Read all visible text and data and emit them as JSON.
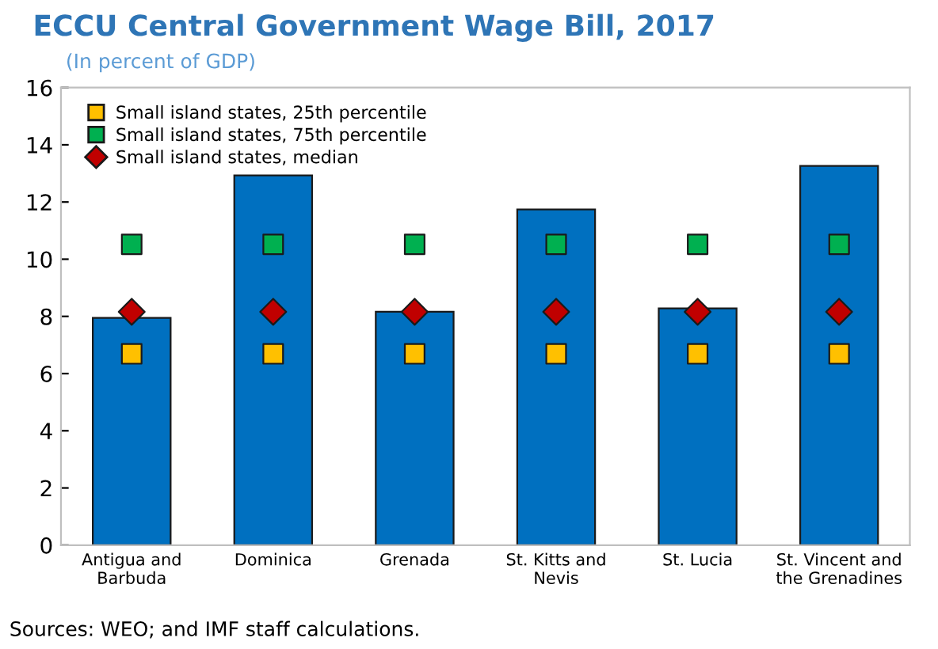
{
  "chart_data": {
    "type": "bar",
    "title": "ECCU Central Government Wage Bill, 2017",
    "subtitle": "(In percent of GDP)",
    "categories": [
      "Antigua and\nBarbuda",
      "Dominica",
      "Grenada",
      "St. Kitts and\nNevis",
      "St. Lucia",
      "St. Vincent and\nthe Grenadines"
    ],
    "series": [
      {
        "color": "#0070c0",
        "values": [
          7.95,
          12.93,
          8.16,
          11.74,
          8.28,
          13.26
        ]
      },
      {
        "type": "scatter",
        "name": "Small island states, 25th percentile",
        "color": "#ffc000",
        "marker": "square",
        "x": [
          "Antigua and\nBarbuda",
          "Dominica",
          "Grenada",
          "St. Kitts and\nNevis",
          "St. Lucia",
          "St. Vincent and\nthe Grenadines"
        ],
        "values": [
          6.69,
          6.69,
          6.69,
          6.69,
          6.69,
          6.69
        ]
      },
      {
        "type": "scatter",
        "name": "Small island states, 75th percentile",
        "color": "#00b050",
        "marker": "square",
        "x": [
          "Antigua and\nBarbuda",
          "Dominica",
          "Grenada",
          "St. Kitts and\nNevis",
          "St. Lucia",
          "St. Vincent and\nthe Grenadines"
        ],
        "values": [
          10.52,
          10.52,
          10.52,
          10.52,
          10.52,
          10.52
        ]
      },
      {
        "type": "scatter",
        "name": "Small island states, median",
        "color": "#c00000",
        "marker": "diamond",
        "x": [
          "Antigua and\nBarbuda",
          "Dominica",
          "Grenada",
          "St. Kitts and\nNevis",
          "St. Lucia",
          "St. Vincent and\nthe Grenadines"
        ],
        "values": [
          8.16,
          8.16,
          8.16,
          8.16,
          8.16,
          8.16
        ]
      }
    ],
    "ylim": [
      0,
      16
    ],
    "yticks": [
      0,
      2,
      4,
      6,
      8,
      10,
      12,
      14,
      16
    ],
    "grid": false,
    "legend": "top left",
    "annotations": [
      "Sources: WEO; and IMF staff calculations."
    ]
  }
}
